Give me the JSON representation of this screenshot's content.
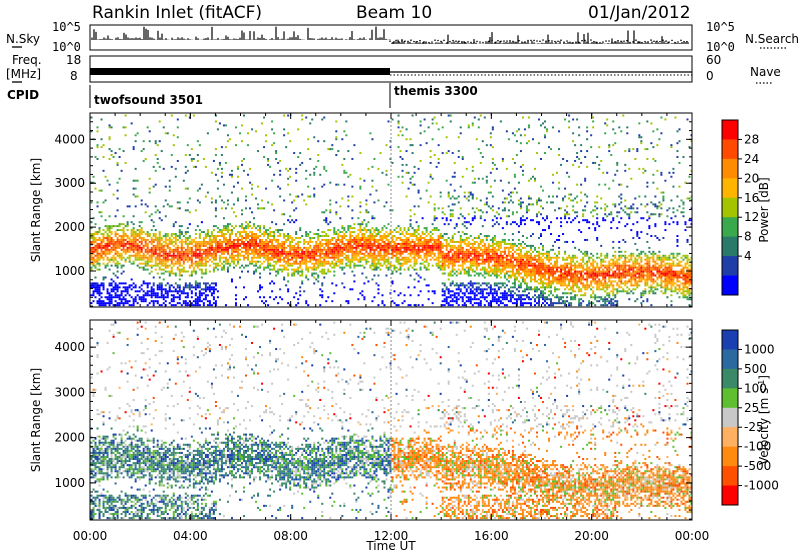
{
  "header": {
    "station": "Rankin Inlet (fitACF)",
    "beam": "Beam 10",
    "date": "01/Jan/2012"
  },
  "left_labels": {
    "nsky": "N.Sky",
    "freq_line1": "Freq.",
    "freq_line2": "[MHz]",
    "cpid": "CPID"
  },
  "right_labels": {
    "nsearch": "N.Search",
    "nave": "Nave"
  },
  "noise_panel": {
    "left_ticks": [
      "10^5",
      "10^0"
    ],
    "right_ticks": [
      "10^5",
      "10^0"
    ]
  },
  "freq_panel": {
    "left_ticks": [
      "18",
      "8"
    ],
    "right_ticks": [
      "60",
      "0"
    ]
  },
  "cpid_panel": {
    "modes": [
      {
        "name": "twofsound 3501",
        "start_hour": 0
      },
      {
        "name": "themis 3300",
        "start_hour": 12
      }
    ]
  },
  "chart_data": [
    {
      "type": "heatmap",
      "title": "Power [dB]",
      "xlabel": "Time UT",
      "ylabel": "Slant Range [km]",
      "xlim_hours": [
        0,
        24
      ],
      "ylim": [
        180,
        4600
      ],
      "x_ticks": [
        "00:00",
        "04:00",
        "08:00",
        "12:00",
        "16:00",
        "20:00",
        "00:00"
      ],
      "y_ticks": [
        1000,
        2000,
        3000,
        4000
      ],
      "colorbar": {
        "label": "Power [dB]",
        "ticks": [
          "28",
          "24",
          "20",
          "16",
          "12",
          "8",
          "4"
        ],
        "colors": [
          "#ff0000",
          "#ff4a00",
          "#ff8c00",
          "#ffb400",
          "#a4c400",
          "#3aa84c",
          "#2a7a6a",
          "#1f3ea8",
          "#0000ff"
        ]
      }
    },
    {
      "type": "heatmap",
      "title": "Velocity [m s-1]",
      "xlabel": "Time UT",
      "ylabel": "Slant Range [km]",
      "xlim_hours": [
        0,
        24
      ],
      "ylim": [
        180,
        4600
      ],
      "x_ticks": [
        "00:00",
        "04:00",
        "08:00",
        "12:00",
        "16:00",
        "20:00",
        "00:00"
      ],
      "y_ticks": [
        1000,
        2000,
        3000,
        4000
      ],
      "colorbar": {
        "label": "Velocity [m s",
        "label_sup": "-1",
        "label_end": "]",
        "ticks": [
          "1000",
          "500",
          "100",
          "25",
          "-25",
          "-100",
          "-500",
          "-1000"
        ],
        "colors": [
          "#1a3fb0",
          "#2a6aa0",
          "#3a8a6a",
          "#5fbf30",
          "#c8c8c8",
          "#ffb060",
          "#ff8a10",
          "#ff5000",
          "#ff0000"
        ]
      }
    }
  ],
  "xaxis_title": "Time UT"
}
